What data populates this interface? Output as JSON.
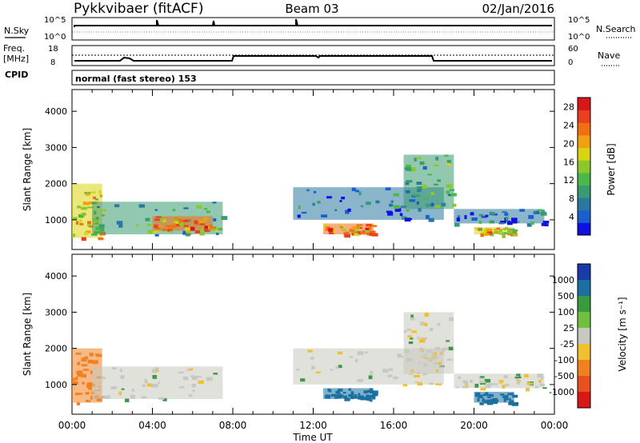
{
  "header": {
    "station": "Pykkvibaer (fitACF)",
    "beam": "Beam 03",
    "date": "02/Jan/2016"
  },
  "noise_panel": {
    "left_label": "N.Sky",
    "right_label": "N.Search",
    "left_ticks": [
      "10^5",
      "10^0"
    ],
    "right_ticks": [
      "10^5",
      "10^0"
    ]
  },
  "freq_panel": {
    "left_label_1": "Freq.",
    "left_label_2": "[MHz]",
    "left_ticks": [
      "18",
      "8"
    ],
    "right_ticks": [
      "60",
      "0"
    ],
    "right_label": "Nave"
  },
  "cpid": {
    "label": "CPID",
    "value": "normal (fast stereo) 153"
  },
  "chart_data": [
    {
      "type": "heatmap",
      "title": "",
      "quantity": "Power",
      "xlabel": "Time UT",
      "ylabel": "Slant Range [km]",
      "xlim": [
        "00:00",
        "24:00"
      ],
      "x_ticks": [
        "00:00",
        "04:00",
        "08:00",
        "12:00",
        "16:00",
        "20:00",
        "00:00"
      ],
      "ylim": [
        180,
        4600
      ],
      "y_ticks": [
        1000,
        2000,
        3000,
        4000
      ],
      "colorbar_label": "Power [dB]",
      "colorbar_ticks": [
        4,
        8,
        12,
        16,
        20,
        24,
        28
      ],
      "colorbar_range": [
        0,
        30
      ],
      "colors": [
        "#1010e0",
        "#1a5fd0",
        "#2a78a0",
        "#3a9a70",
        "#4ab84a",
        "#8cc82a",
        "#d8d410",
        "#f0a010",
        "#f07010",
        "#e84020",
        "#d81818"
      ],
      "echo_regions": [
        {
          "t_start": 0.0,
          "t_end": 1.5,
          "range_start": 500,
          "range_end": 2000,
          "value": 18
        },
        {
          "t_start": 1.0,
          "t_end": 7.5,
          "range_start": 600,
          "range_end": 1500,
          "value": 10
        },
        {
          "t_start": 4.0,
          "t_end": 7.0,
          "range_start": 700,
          "range_end": 1100,
          "value": 22
        },
        {
          "t_start": 11.0,
          "t_end": 18.5,
          "range_start": 1000,
          "range_end": 1900,
          "value": 6
        },
        {
          "t_start": 12.5,
          "t_end": 15.0,
          "range_start": 600,
          "range_end": 900,
          "value": 22
        },
        {
          "t_start": 16.5,
          "t_end": 19.0,
          "range_start": 1300,
          "range_end": 2800,
          "value": 10
        },
        {
          "t_start": 19.0,
          "t_end": 23.5,
          "range_start": 900,
          "range_end": 1300,
          "value": 6
        },
        {
          "t_start": 20.0,
          "t_end": 22.0,
          "range_start": 600,
          "range_end": 800,
          "value": 18
        }
      ]
    },
    {
      "type": "heatmap",
      "title": "",
      "quantity": "Velocity",
      "xlabel": "Time UT",
      "ylabel": "Slant Range [km]",
      "xlim": [
        "00:00",
        "24:00"
      ],
      "x_ticks": [
        "00:00",
        "04:00",
        "08:00",
        "12:00",
        "16:00",
        "20:00",
        "00:00"
      ],
      "ylim": [
        180,
        4600
      ],
      "y_ticks": [
        1000,
        2000,
        3000,
        4000
      ],
      "colorbar_label": "Velocity [m s⁻¹]",
      "colorbar_ticks": [
        "1000",
        "500",
        "100",
        "25",
        "-25",
        "-100",
        "-500",
        "-1000"
      ],
      "colors": [
        "#1a3aa8",
        "#1a70a0",
        "#3a9a40",
        "#70c040",
        "#c8c8c0",
        "#f0c030",
        "#f08020",
        "#e85020",
        "#d81818"
      ],
      "echo_regions": [
        {
          "t_start": 0.0,
          "t_end": 1.5,
          "range_start": 500,
          "range_end": 2000,
          "value": -200
        },
        {
          "t_start": 1.0,
          "t_end": 7.5,
          "range_start": 600,
          "range_end": 1500,
          "value": 0
        },
        {
          "t_start": 11.0,
          "t_end": 18.5,
          "range_start": 1000,
          "range_end": 2000,
          "value": 0
        },
        {
          "t_start": 12.5,
          "t_end": 15.0,
          "range_start": 600,
          "range_end": 900,
          "value": 150
        },
        {
          "t_start": 16.5,
          "t_end": 19.0,
          "range_start": 1300,
          "range_end": 3000,
          "value": 0
        },
        {
          "t_start": 19.0,
          "t_end": 23.5,
          "range_start": 900,
          "range_end": 1300,
          "value": 0
        },
        {
          "t_start": 20.0,
          "t_end": 22.0,
          "range_start": 500,
          "range_end": 800,
          "value": 150
        }
      ]
    }
  ]
}
